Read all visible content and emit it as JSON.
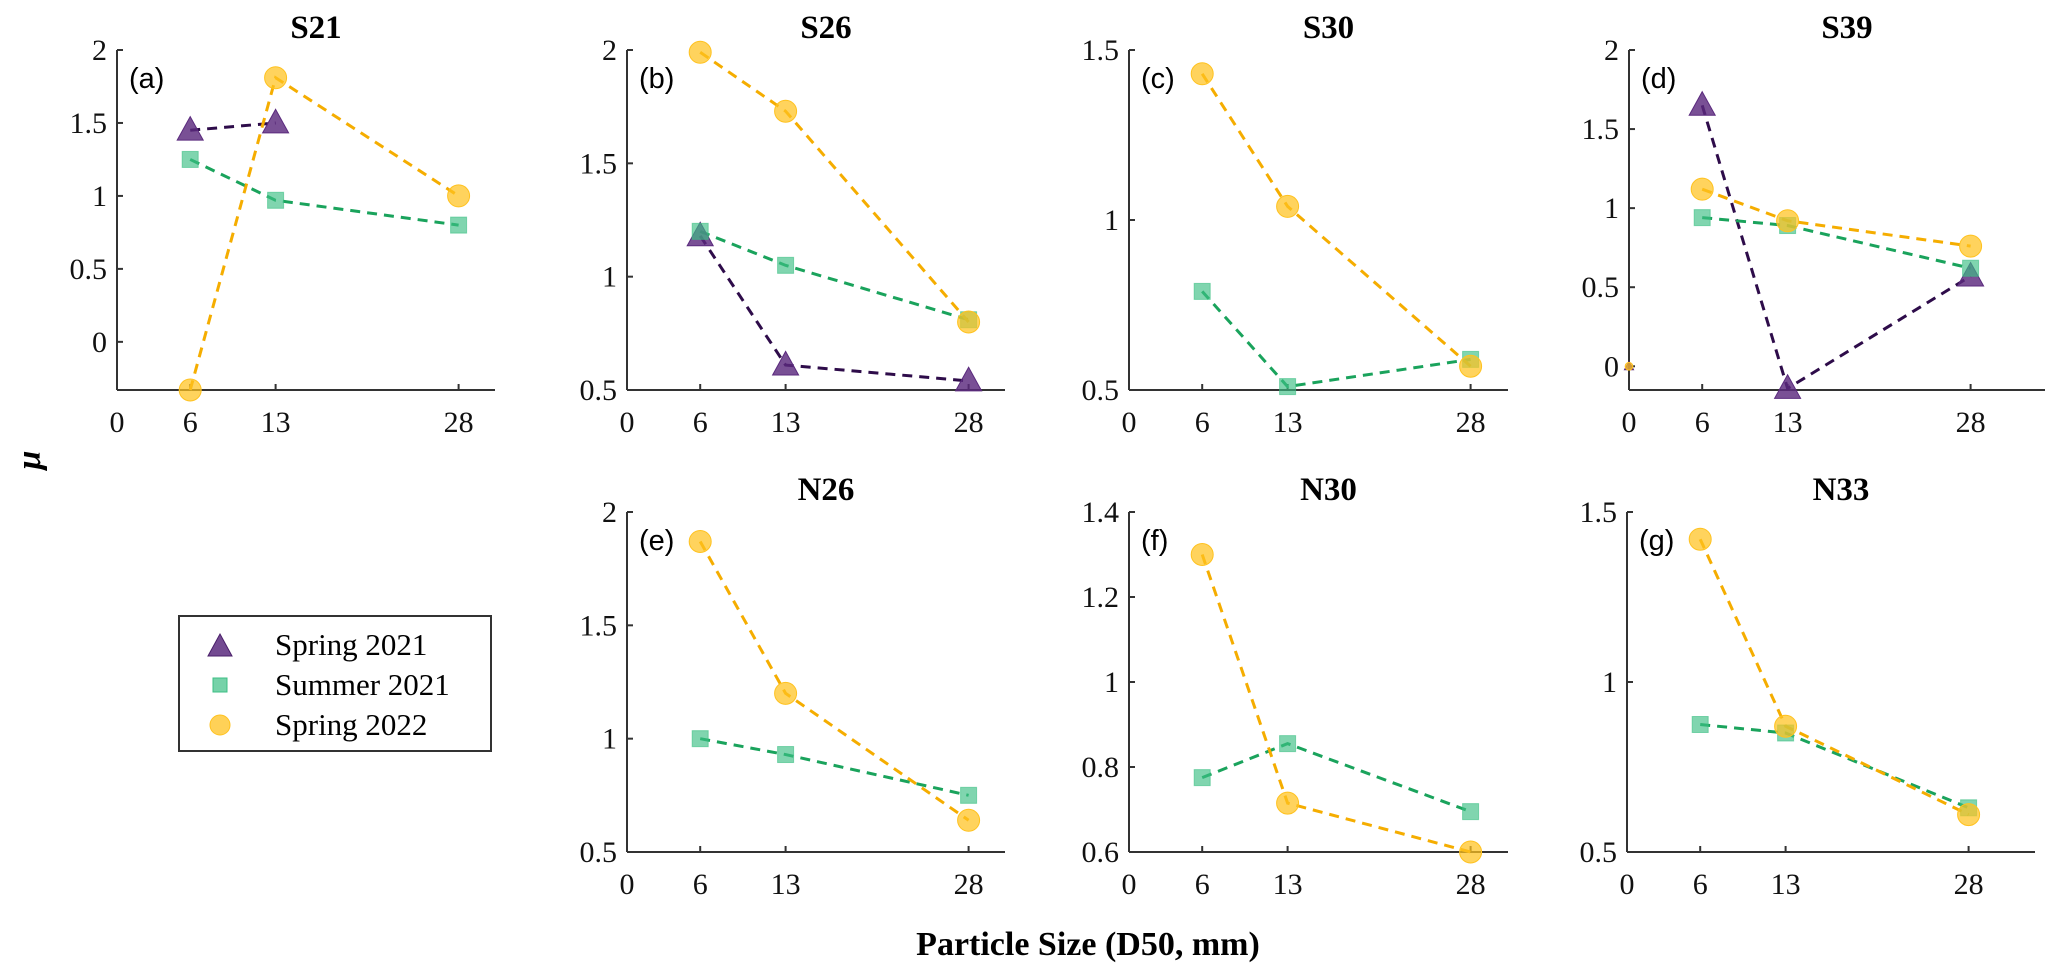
{
  "chart_data": {
    "type": "line",
    "xlabel": "Particle Size (D50, mm)",
    "ylabel": "μ",
    "legend": {
      "placement": "left-middle",
      "entries": [
        {
          "key": "spring2021",
          "label": "Spring 2021",
          "marker": "triangle",
          "color": "#5b2a7e",
          "line_color": "#2e0c4a"
        },
        {
          "key": "summer2021",
          "label": "Summer 2021",
          "marker": "square",
          "color": "#3cbf84",
          "line_color": "#1aa35c"
        },
        {
          "key": "spring2022",
          "label": "Spring 2022",
          "marker": "circle",
          "color": "#ffc21f",
          "line_color": "#f5ad00"
        }
      ]
    },
    "x_ticks": [
      0,
      6,
      13,
      28
    ],
    "xlim": [
      0,
      31
    ],
    "panels": [
      {
        "id": "a",
        "letter": "(a)",
        "title": "S21",
        "ylim": [
          -0.33,
          2
        ],
        "y_ticks": [
          0,
          0.5,
          1,
          1.5,
          2
        ],
        "y_tick_labels": [
          "0",
          "0.5",
          "1",
          "1.5",
          "2"
        ],
        "series": [
          {
            "key": "spring2021",
            "x": [
              6,
              13
            ],
            "y": [
              1.45,
              1.5
            ]
          },
          {
            "key": "summer2021",
            "x": [
              6,
              13,
              28
            ],
            "y": [
              1.25,
              0.97,
              0.8
            ]
          },
          {
            "key": "spring2022",
            "x": [
              6,
              13,
              28
            ],
            "y": [
              -0.33,
              1.81,
              1.0
            ]
          }
        ]
      },
      {
        "id": "b",
        "letter": "(b)",
        "title": "S26",
        "ylim": [
          0.5,
          2
        ],
        "y_ticks": [
          0.5,
          1,
          1.5,
          2
        ],
        "y_tick_labels": [
          "0.5",
          "1",
          "1.5",
          "2"
        ],
        "series": [
          {
            "key": "spring2021",
            "x": [
              6,
              13,
              28
            ],
            "y": [
              1.18,
              0.61,
              0.54
            ]
          },
          {
            "key": "summer2021",
            "x": [
              6,
              13,
              28
            ],
            "y": [
              1.2,
              1.05,
              0.81
            ]
          },
          {
            "key": "spring2022",
            "x": [
              6,
              13,
              28
            ],
            "y": [
              1.99,
              1.73,
              0.8
            ]
          }
        ]
      },
      {
        "id": "c",
        "letter": "(c)",
        "title": "S30",
        "ylim": [
          0.5,
          1.5
        ],
        "y_ticks": [
          0.5,
          1,
          1.5
        ],
        "y_tick_labels": [
          "0.5",
          "1",
          "1.5"
        ],
        "series": [
          {
            "key": "summer2021",
            "x": [
              6,
              13,
              28
            ],
            "y": [
              0.79,
              0.51,
              0.59
            ]
          },
          {
            "key": "spring2022",
            "x": [
              6,
              13,
              28
            ],
            "y": [
              1.43,
              1.04,
              0.57
            ]
          }
        ]
      },
      {
        "id": "d",
        "letter": "(d)",
        "title": "S39",
        "ylim": [
          -0.15,
          2
        ],
        "y_ticks": [
          0,
          0.5,
          1,
          1.5,
          2
        ],
        "y_tick_labels": [
          "0",
          "0.5",
          "1",
          "1.5",
          "2"
        ],
        "series": [
          {
            "key": "spring2021",
            "x": [
              6,
              13,
              28
            ],
            "y": [
              1.65,
              -0.14,
              0.57
            ]
          },
          {
            "key": "summer2021",
            "x": [
              6,
              13,
              28
            ],
            "y": [
              0.94,
              0.89,
              0.62
            ]
          },
          {
            "key": "spring2022",
            "x": [
              6,
              13,
              28
            ],
            "y": [
              1.12,
              0.92,
              0.76
            ]
          }
        ],
        "extra_points": [
          {
            "key": "spring2022",
            "x": 0,
            "y": 0
          }
        ]
      },
      {
        "id": "e",
        "letter": "(e)",
        "title": "N26",
        "ylim": [
          0.5,
          2
        ],
        "y_ticks": [
          0.5,
          1,
          1.5,
          2
        ],
        "y_tick_labels": [
          "0.5",
          "1",
          "1.5",
          "2"
        ],
        "series": [
          {
            "key": "summer2021",
            "x": [
              6,
              13,
              28
            ],
            "y": [
              1.0,
              0.93,
              0.75
            ]
          },
          {
            "key": "spring2022",
            "x": [
              6,
              13,
              28
            ],
            "y": [
              1.87,
              1.2,
              0.64
            ]
          }
        ]
      },
      {
        "id": "f",
        "letter": "(f)",
        "title": "N30",
        "ylim": [
          0.6,
          1.4
        ],
        "y_ticks": [
          0.6,
          0.8,
          1,
          1.2,
          1.4
        ],
        "y_tick_labels": [
          "0.6",
          "0.8",
          "1",
          "1.2",
          "1.4"
        ],
        "series": [
          {
            "key": "summer2021",
            "x": [
              6,
              13,
              28
            ],
            "y": [
              0.775,
              0.855,
              0.695
            ]
          },
          {
            "key": "spring2022",
            "x": [
              6,
              13,
              28
            ],
            "y": [
              1.3,
              0.715,
              0.6
            ]
          }
        ]
      },
      {
        "id": "g",
        "letter": "(g)",
        "title": "N33",
        "ylim": [
          0.5,
          1.5
        ],
        "y_ticks": [
          0.5,
          1,
          1.5
        ],
        "y_tick_labels": [
          "0.5",
          "1",
          "1.5"
        ],
        "series": [
          {
            "key": "summer2021",
            "x": [
              6,
              13,
              28
            ],
            "y": [
              0.875,
              0.85,
              0.63
            ]
          },
          {
            "key": "spring2022",
            "x": [
              6,
              13,
              28
            ],
            "y": [
              1.42,
              0.87,
              0.61
            ]
          }
        ]
      }
    ]
  }
}
